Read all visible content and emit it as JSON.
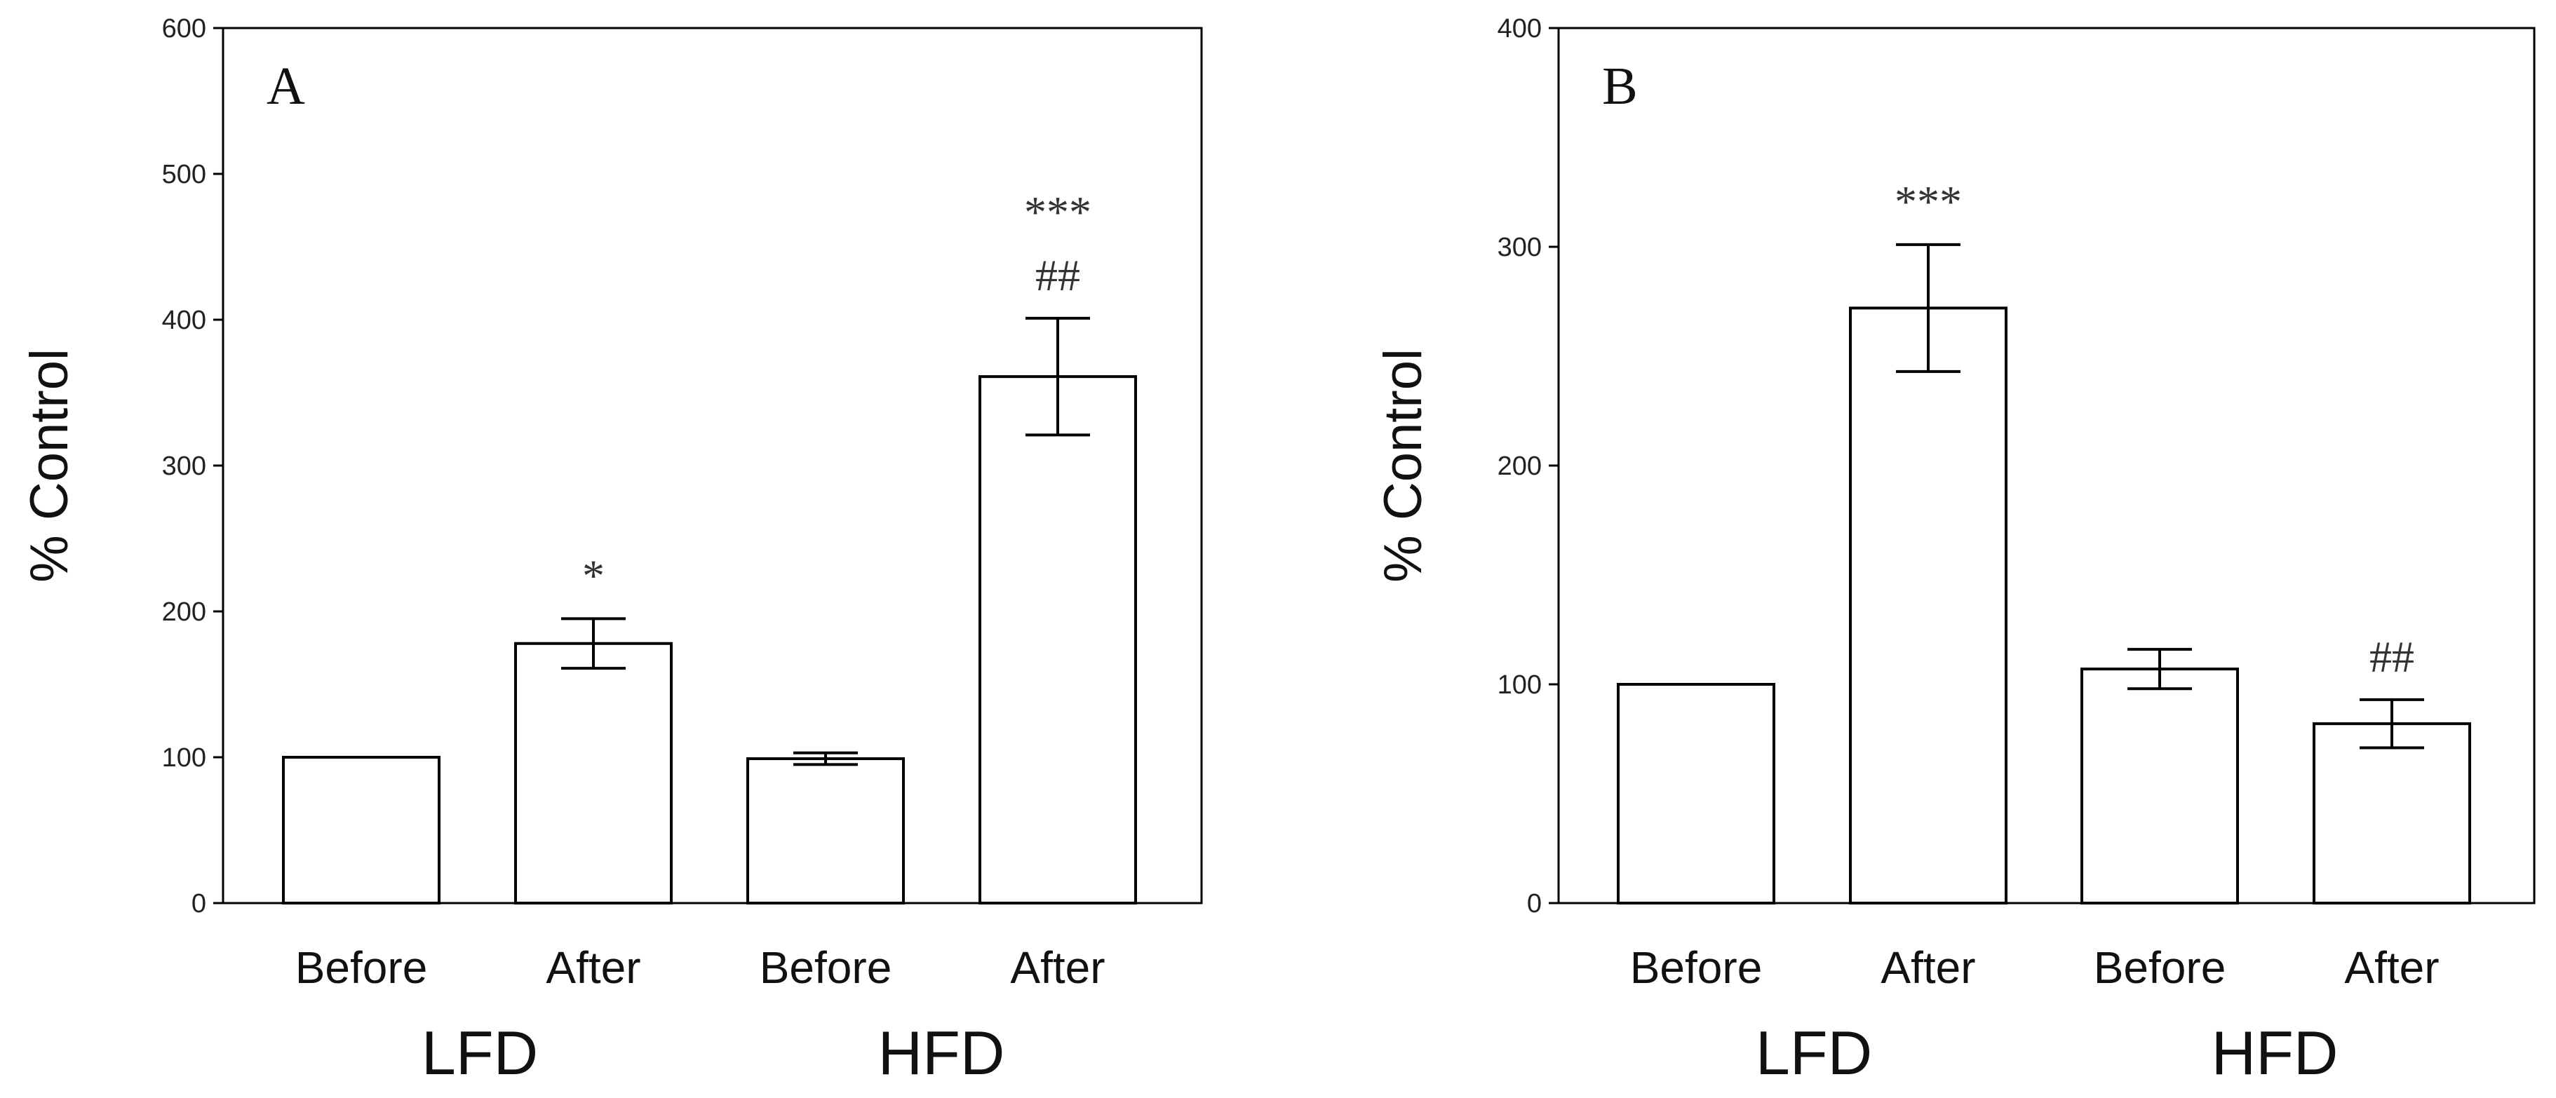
{
  "chart_data": [
    {
      "type": "bar",
      "panel_label": "A",
      "ylabel": "% Control",
      "ylim": [
        0,
        600
      ],
      "yticks": [
        0,
        100,
        200,
        300,
        400,
        500,
        600
      ],
      "categories": [
        "Before",
        "After",
        "Before",
        "After"
      ],
      "groups": [
        {
          "label": "LFD",
          "categories": [
            0,
            1
          ]
        },
        {
          "label": "HFD",
          "categories": [
            2,
            3
          ]
        }
      ],
      "values": [
        100,
        178,
        99,
        361
      ],
      "errors": [
        0,
        17,
        4,
        40
      ],
      "annotations": [
        "",
        "*",
        "",
        "***\n##"
      ]
    },
    {
      "type": "bar",
      "panel_label": "B",
      "ylabel": "% Control",
      "ylim": [
        0,
        400
      ],
      "yticks": [
        0,
        100,
        200,
        300,
        400
      ],
      "categories": [
        "Before",
        "After",
        "Before",
        "After"
      ],
      "groups": [
        {
          "label": "LFD",
          "categories": [
            0,
            1
          ]
        },
        {
          "label": "HFD",
          "categories": [
            2,
            3
          ]
        }
      ],
      "values": [
        100,
        272,
        107,
        82
      ],
      "errors": [
        0,
        29,
        9,
        11
      ],
      "annotations": [
        "",
        "***",
        "",
        "##"
      ]
    }
  ]
}
